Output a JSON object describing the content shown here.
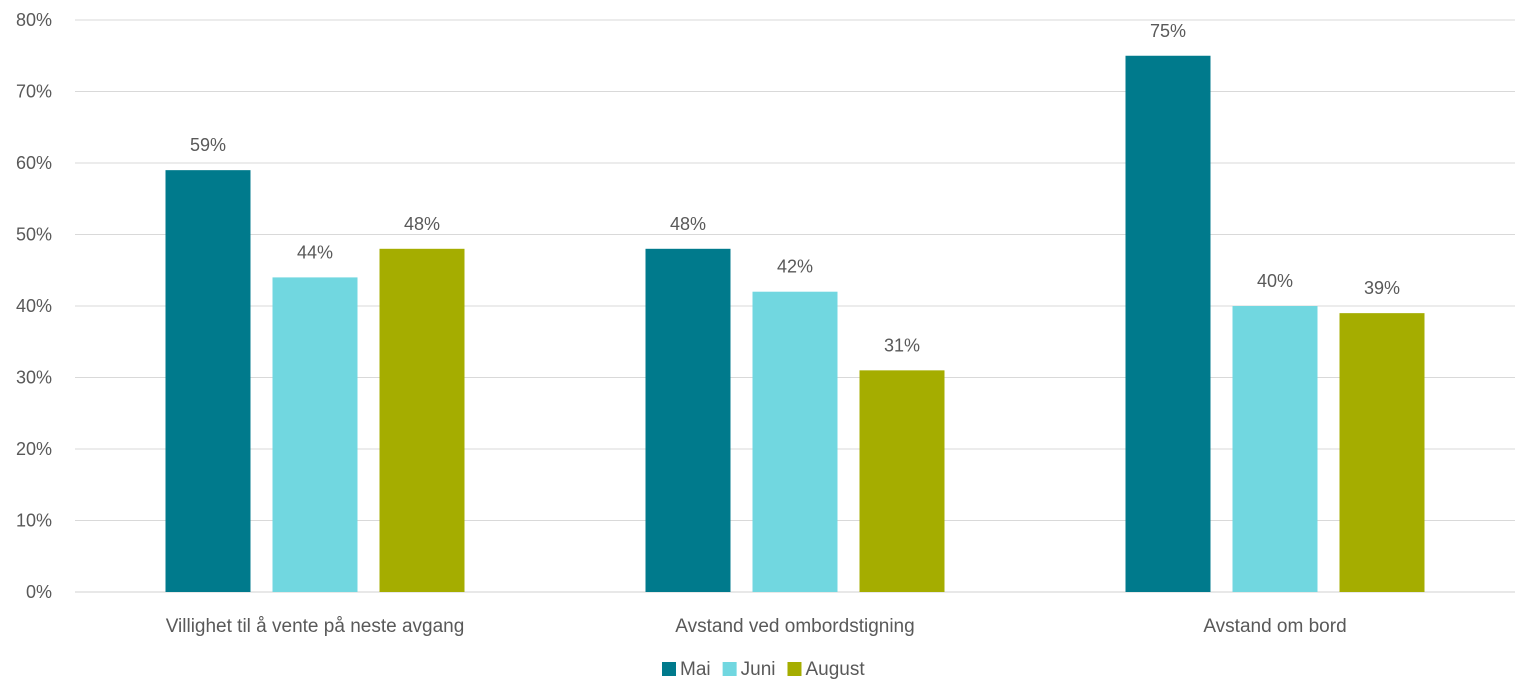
{
  "chart_data": {
    "type": "bar",
    "title": "",
    "xlabel": "",
    "ylabel": "",
    "categories": [
      "Villighet til å vente på neste avgang",
      "Avstand ved ombordstigning",
      "Avstand om bord"
    ],
    "series": [
      {
        "name": "Mai",
        "color": "#007A8C",
        "values": [
          59,
          48,
          75
        ],
        "labels": [
          "59%",
          "48%",
          "75%"
        ]
      },
      {
        "name": "Juni",
        "color": "#71D7E0",
        "values": [
          44,
          42,
          40
        ],
        "labels": [
          "44%",
          "42%",
          "40%"
        ]
      },
      {
        "name": "August",
        "color": "#A5AD00",
        "values": [
          48,
          31,
          39
        ],
        "labels": [
          "48%",
          "31%",
          "39%"
        ]
      }
    ],
    "ylim": [
      0,
      80
    ],
    "yticks": [
      0,
      10,
      20,
      30,
      40,
      50,
      60,
      70,
      80
    ],
    "ytick_labels": [
      "0%",
      "10%",
      "20%",
      "30%",
      "40%",
      "50%",
      "60%",
      "70%",
      "80%"
    ],
    "grid": true,
    "legend_position": "bottom-center"
  }
}
